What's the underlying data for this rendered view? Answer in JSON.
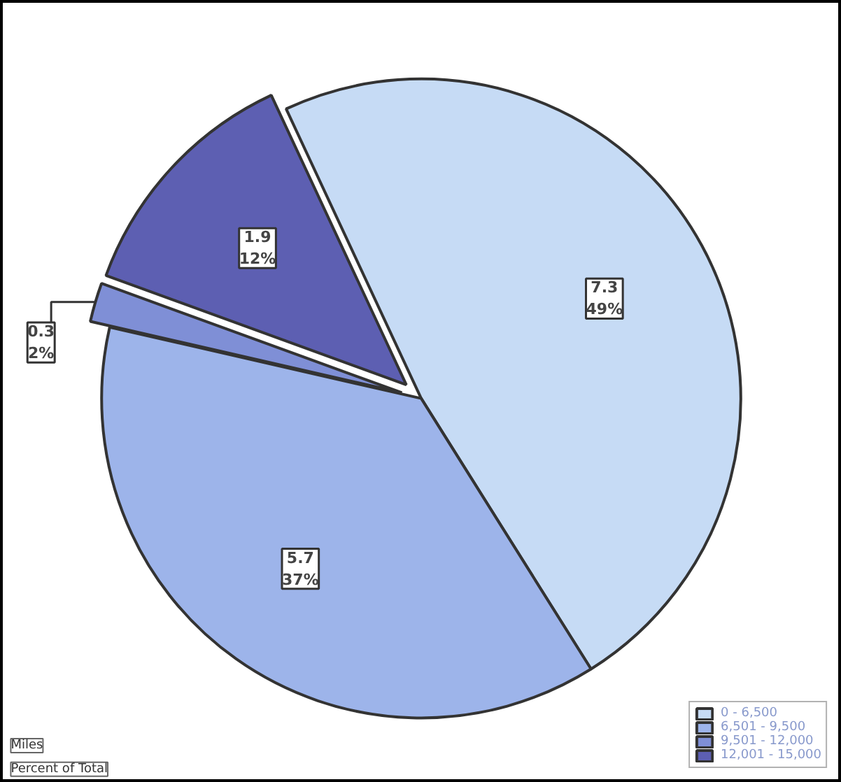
{
  "chart_data": {
    "type": "pie",
    "categories": [
      "0 - 6,500",
      "6,501 - 9,500",
      "9,501 - 12,000",
      "12,001 - 15,000"
    ],
    "values": [
      7.3,
      5.7,
      0.3,
      1.9
    ],
    "value_labels": [
      "7.3\n49%",
      "5.7\n37%",
      "0.3\n2%",
      "1.9\n12%"
    ],
    "colors": [
      "#c6dbf5",
      "#9db4ea",
      "#7f8fd6",
      "#5d5fb2"
    ],
    "legend": "bottom right",
    "annotations": [
      "Miles",
      "Percent of Total"
    ]
  }
}
